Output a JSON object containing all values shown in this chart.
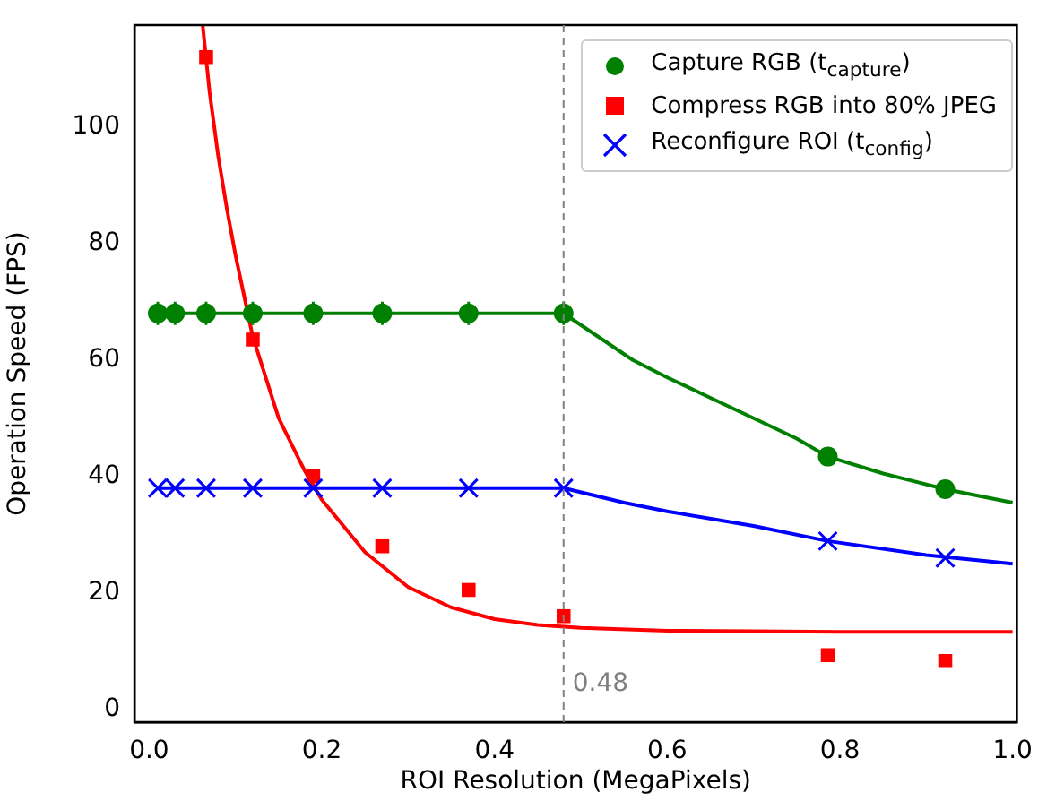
{
  "chart_data": {
    "type": "scatter",
    "xlabel": "ROI Resolution (MegaPixels)",
    "ylabel": "Operation Speed (FPS)",
    "xlim": [
      -0.017,
      1.005
    ],
    "ylim": [
      -2.2,
      117.5
    ],
    "xticks": [
      {
        "value": 0,
        "label": "0.0"
      },
      0.2,
      0.4,
      0.6,
      0.8,
      {
        "value": 1,
        "label": "1.0"
      }
    ],
    "yticks": [
      0,
      20,
      40,
      60,
      80,
      100
    ],
    "grid": false,
    "legend": "top right",
    "ref_lines": [
      {
        "axis": "x",
        "value": 0.48,
        "label": "0.48",
        "color": "#808080",
        "line_style": "dashed"
      }
    ],
    "series": [
      {
        "type": "line",
        "color": "#008000",
        "marker": "none",
        "x": [
          0.01,
          0.48,
          0.52,
          0.56,
          0.6,
          0.65,
          0.7,
          0.75,
          0.786,
          0.85,
          0.922,
          1.0
        ],
        "values": [
          68,
          68,
          64,
          60,
          57,
          53.5,
          50,
          46.5,
          43.4,
          40.5,
          37.8,
          35.5
        ]
      },
      {
        "type": "line",
        "color": "#ff0000",
        "marker": "none",
        "x": [
          0.062,
          0.07,
          0.08,
          0.09,
          0.1,
          0.12,
          0.15,
          0.18,
          0.2,
          0.25,
          0.3,
          0.35,
          0.4,
          0.45,
          0.5,
          0.6,
          0.7,
          0.8,
          1.0
        ],
        "values": [
          117.5,
          106,
          95,
          86,
          78,
          64,
          50,
          41,
          36,
          27,
          21,
          17.5,
          15.5,
          14.5,
          14,
          13.5,
          13.4,
          13.3,
          13.3
        ]
      },
      {
        "type": "line",
        "color": "#0000ff",
        "marker": "none",
        "x": [
          0.01,
          0.48,
          0.55,
          0.6,
          0.7,
          0.786,
          0.9,
          1.0
        ],
        "values": [
          38,
          38,
          35.5,
          34,
          31.5,
          28.9,
          26.5,
          25
        ]
      },
      {
        "name": "Capture RGB (t$_{capture}$)",
        "color": "#008000",
        "marker": "circle",
        "x": [
          0.01,
          0.03,
          0.066,
          0.12,
          0.19,
          0.27,
          0.37,
          0.48,
          0.786,
          0.922
        ],
        "values": [
          68,
          68,
          68,
          68,
          68,
          68,
          68,
          68,
          43.4,
          37.8
        ],
        "errors": [
          2,
          2,
          2,
          2,
          2,
          2,
          2,
          2,
          null,
          null
        ]
      },
      {
        "name": "Compress RGB into 80% JPEG",
        "color": "#ff0000",
        "marker": "square",
        "x": [
          0.066,
          0.12,
          0.19,
          0.27,
          0.37,
          0.48,
          0.786,
          0.922
        ],
        "values": [
          112,
          63.5,
          40,
          28,
          20.5,
          16,
          9.3,
          8.3
        ]
      },
      {
        "name": "Reconfigure ROI (t$_{config}$)",
        "color": "#0000ff",
        "marker": "cross",
        "x": [
          0.01,
          0.03,
          0.066,
          0.12,
          0.19,
          0.27,
          0.37,
          0.48,
          0.786,
          0.922
        ],
        "values": [
          38,
          38,
          38,
          38,
          38,
          38,
          38,
          38,
          28.9,
          26
        ]
      }
    ]
  }
}
